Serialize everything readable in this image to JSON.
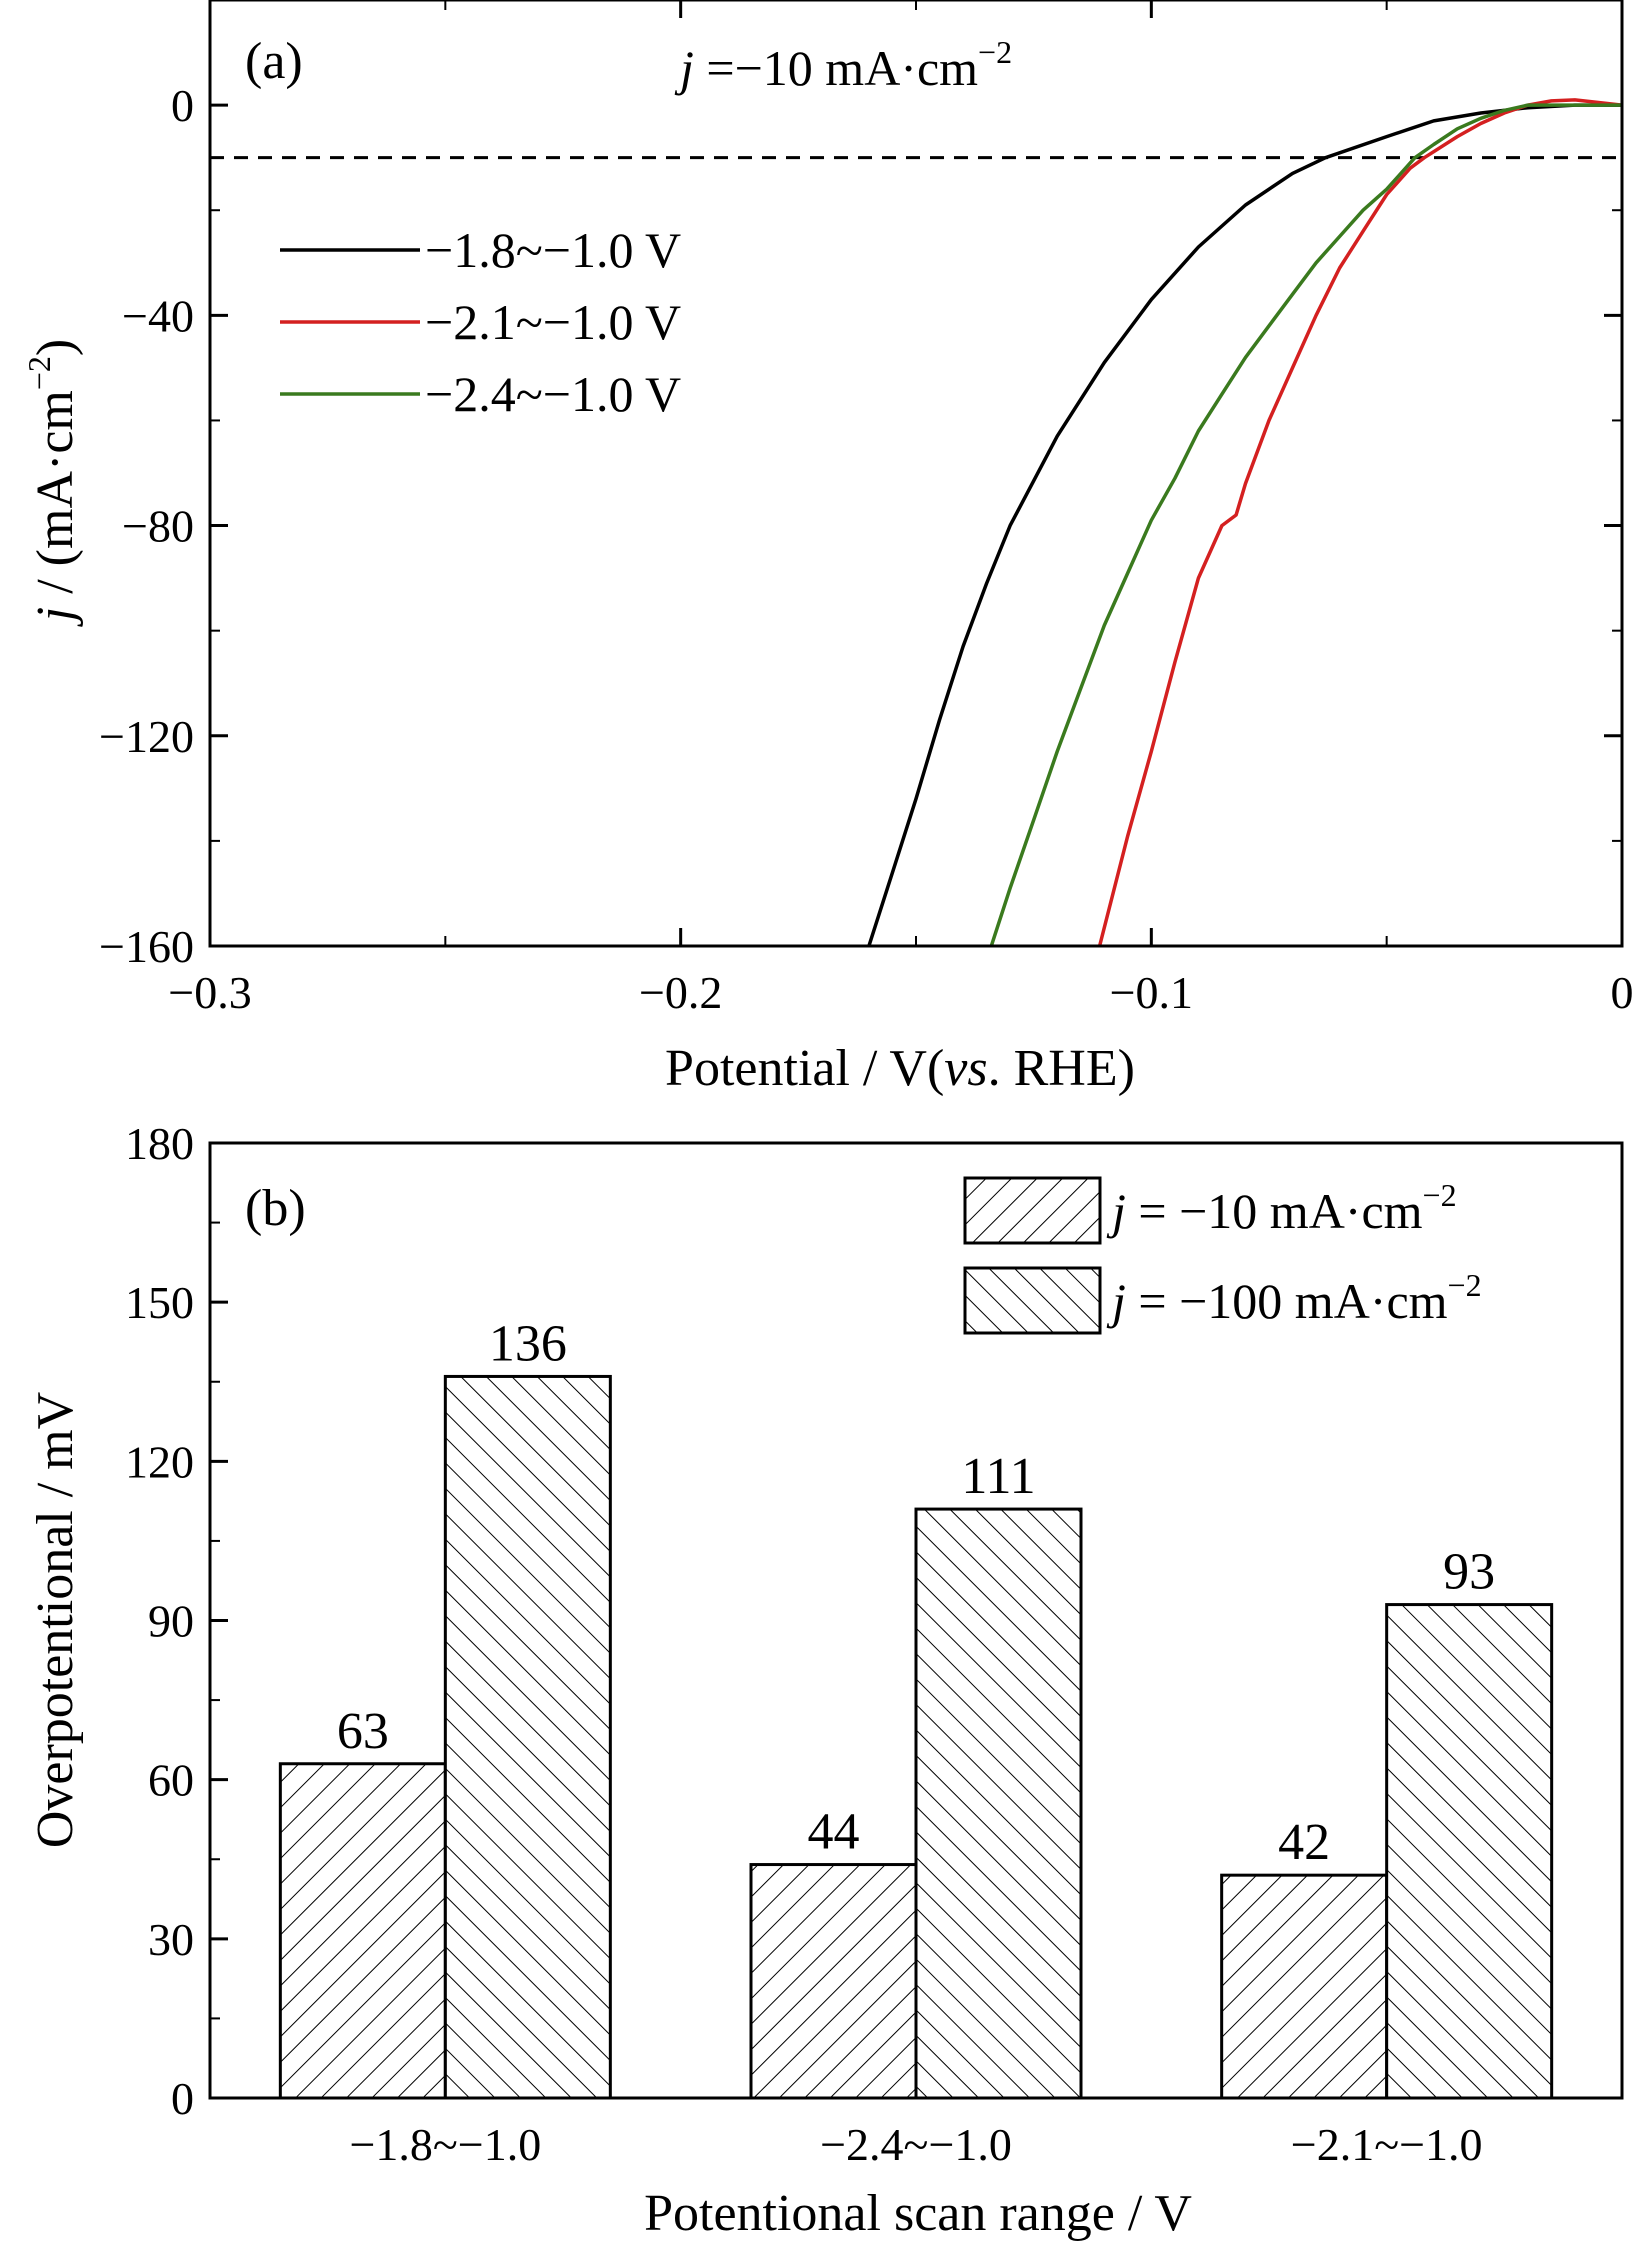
{
  "chart_data": [
    {
      "panel": "(a)",
      "type": "line",
      "xlabel_prefix": "Potential / V(",
      "xlabel_italic": "vs",
      "xlabel_suffix": ". RHE)",
      "ylabel_italic": "j",
      "ylabel_rest": " / (mA·cm",
      "ylabel_sup": "−2",
      "ylabel_end": ")",
      "xlim": [
        -0.3,
        0
      ],
      "ylim": [
        -160,
        20
      ],
      "xticks": [
        -0.3,
        -0.2,
        -0.1,
        0
      ],
      "xtick_labels": [
        "−0.3",
        "−0.2",
        "−0.1",
        "0"
      ],
      "yticks": [
        0,
        -40,
        -80,
        -120,
        -160
      ],
      "ytick_labels": [
        "0",
        "−40",
        "−80",
        "−120",
        "−160"
      ],
      "annotation": {
        "italic": "j",
        "text": " =−10 mA·cm",
        "sup": "−2"
      },
      "reference_line": {
        "y": -10,
        "style": "dashed"
      },
      "legend_position": "upper-left",
      "series": [
        {
          "name": "−1.8~−1.0 V",
          "color": "#000000",
          "x": [
            -0.16,
            -0.155,
            -0.15,
            -0.145,
            -0.14,
            -0.135,
            -0.13,
            -0.12,
            -0.11,
            -0.1,
            -0.09,
            -0.08,
            -0.07,
            -0.063,
            -0.05,
            -0.04,
            -0.03,
            -0.02,
            -0.01,
            0
          ],
          "y": [
            -160,
            -146,
            -132,
            -117,
            -103,
            -91,
            -80,
            -63,
            -49,
            -37,
            -27,
            -19,
            -13,
            -10,
            -6,
            -3,
            -1.5,
            -0.5,
            0,
            0
          ]
        },
        {
          "name": "−2.1~−1.0 V",
          "color": "#d42020",
          "x": [
            -0.111,
            -0.105,
            -0.1,
            -0.095,
            -0.09,
            -0.085,
            -0.082,
            -0.08,
            -0.075,
            -0.07,
            -0.065,
            -0.06,
            -0.055,
            -0.05,
            -0.045,
            -0.042,
            -0.035,
            -0.03,
            -0.025,
            -0.02,
            -0.015,
            -0.01,
            -0.005,
            0
          ],
          "y": [
            -160,
            -139,
            -123,
            -106,
            -90,
            -80,
            -78,
            -72,
            -60,
            -50,
            -40,
            -31,
            -24,
            -17,
            -12,
            -10,
            -6,
            -3.5,
            -1.5,
            0,
            0.8,
            1,
            0.5,
            0
          ]
        },
        {
          "name": "−2.4~−1.0 V",
          "color": "#3a7a1e",
          "x": [
            -0.134,
            -0.13,
            -0.125,
            -0.12,
            -0.115,
            -0.11,
            -0.105,
            -0.1,
            -0.095,
            -0.09,
            -0.085,
            -0.08,
            -0.075,
            -0.07,
            -0.065,
            -0.06,
            -0.055,
            -0.05,
            -0.044,
            -0.04,
            -0.035,
            -0.03,
            -0.025,
            -0.02,
            -0.01,
            0
          ],
          "y": [
            -160,
            -149,
            -136,
            -123,
            -111,
            -99,
            -89,
            -79,
            -71,
            -62,
            -55,
            -48,
            -42,
            -36,
            -30,
            -25,
            -20,
            -16,
            -10,
            -7.5,
            -4.5,
            -2.5,
            -1,
            0,
            0,
            0
          ]
        }
      ]
    },
    {
      "panel": "(b)",
      "type": "bar",
      "xlabel": "Potentional scan range / V",
      "ylabel": "Overpotentional / mV",
      "ylim": [
        0,
        180
      ],
      "yticks": [
        0,
        30,
        60,
        90,
        120,
        150,
        180
      ],
      "categories": [
        "−1.8~−1.0",
        "−2.4~−1.0",
        "−2.1~−1.0"
      ],
      "legend_position": "top-right",
      "series": [
        {
          "name_italic": "j",
          "name_rest": " = −10 mA·cm",
          "name_sup": "−2",
          "hatch": "forward-diagonal",
          "values": [
            63,
            44,
            42
          ]
        },
        {
          "name_italic": "j",
          "name_rest": " = −100 mA·cm",
          "name_sup": "−2",
          "hatch": "backward-diagonal",
          "values": [
            136,
            111,
            93
          ]
        }
      ]
    }
  ]
}
